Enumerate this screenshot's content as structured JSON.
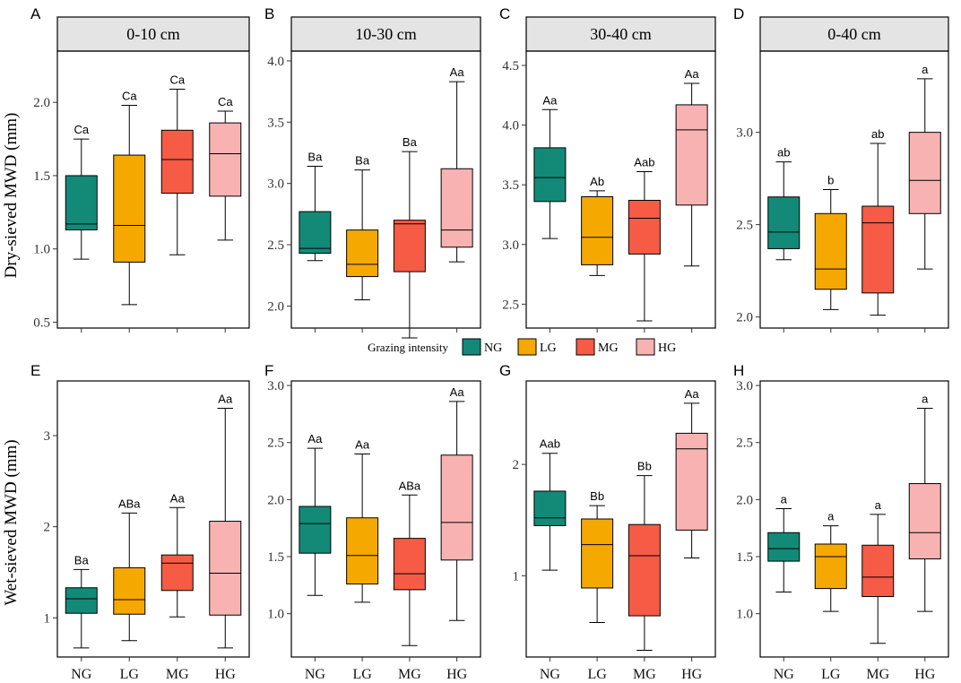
{
  "legend": {
    "title": "Grazing intensity",
    "items": [
      {
        "label": "NG",
        "color": "#138a78"
      },
      {
        "label": "LG",
        "color": "#f5a800"
      },
      {
        "label": "MG",
        "color": "#f55b45"
      },
      {
        "label": "HG",
        "color": "#f8b2b2"
      }
    ]
  },
  "y_titles": {
    "top": "Dry-sieved MWD (mm)",
    "bottom": "Wet-sieved MWD (mm)"
  },
  "chart_data": [
    {
      "type": "box",
      "letter": "A",
      "strip": "0-10 cm",
      "row": 0,
      "categories": [
        "NG",
        "LG",
        "MG",
        "HG"
      ],
      "ylim": [
        0.46,
        2.35
      ],
      "yticks": [
        {
          "v": 0.5,
          "label": "0.5"
        },
        {
          "v": 1.0,
          "label": "1.0"
        },
        {
          "v": 1.5,
          "label": "1.5"
        },
        {
          "v": 2.0,
          "label": "2.0"
        }
      ],
      "boxes": [
        {
          "min": 0.93,
          "q1": 1.13,
          "median": 1.17,
          "q3": 1.5,
          "max": 1.75,
          "label": "Ca"
        },
        {
          "min": 0.62,
          "q1": 0.91,
          "median": 1.16,
          "q3": 1.64,
          "max": 1.98,
          "label": "Ca"
        },
        {
          "min": 0.96,
          "q1": 1.38,
          "median": 1.61,
          "q3": 1.81,
          "max": 2.09,
          "label": "Ca"
        },
        {
          "min": 1.06,
          "q1": 1.36,
          "median": 1.65,
          "q3": 1.86,
          "max": 1.94,
          "label": "Ca"
        }
      ]
    },
    {
      "type": "box",
      "letter": "B",
      "strip": "10-30 cm",
      "row": 0,
      "categories": [
        "NG",
        "LG",
        "MG",
        "HG"
      ],
      "ylim": [
        1.82,
        4.08
      ],
      "yticks": [
        {
          "v": 2.0,
          "label": "2.0"
        },
        {
          "v": 2.5,
          "label": "2.5"
        },
        {
          "v": 3.0,
          "label": "3.0"
        },
        {
          "v": 3.5,
          "label": "3.5"
        },
        {
          "v": 4.0,
          "label": "4.0"
        }
      ],
      "boxes": [
        {
          "min": 2.37,
          "q1": 2.43,
          "median": 2.47,
          "q3": 2.77,
          "max": 3.14,
          "label": "Ba"
        },
        {
          "min": 2.05,
          "q1": 2.24,
          "median": 2.34,
          "q3": 2.62,
          "max": 3.11,
          "label": "Ba"
        },
        {
          "min": 1.74,
          "q1": 2.28,
          "median": 2.67,
          "q3": 2.7,
          "max": 3.26,
          "label": "Ba"
        },
        {
          "min": 2.36,
          "q1": 2.48,
          "median": 2.62,
          "q3": 3.12,
          "max": 3.83,
          "label": "Aa"
        }
      ]
    },
    {
      "type": "box",
      "letter": "C",
      "strip": "30-40 cm",
      "row": 0,
      "categories": [
        "NG",
        "LG",
        "MG",
        "HG"
      ],
      "ylim": [
        2.3,
        4.62
      ],
      "yticks": [
        {
          "v": 2.5,
          "label": "2.5"
        },
        {
          "v": 3.0,
          "label": "3.0"
        },
        {
          "v": 3.5,
          "label": "3.5"
        },
        {
          "v": 4.0,
          "label": "4.0"
        },
        {
          "v": 4.5,
          "label": "4.5"
        }
      ],
      "boxes": [
        {
          "min": 3.05,
          "q1": 3.36,
          "median": 3.56,
          "q3": 3.81,
          "max": 4.13,
          "label": "Aa"
        },
        {
          "min": 2.74,
          "q1": 2.83,
          "median": 3.06,
          "q3": 3.4,
          "max": 3.45,
          "label": "Ab"
        },
        {
          "min": 2.36,
          "q1": 2.92,
          "median": 3.22,
          "q3": 3.37,
          "max": 3.61,
          "label": "Aab"
        },
        {
          "min": 2.82,
          "q1": 3.33,
          "median": 3.96,
          "q3": 4.17,
          "max": 4.35,
          "label": "Aa"
        }
      ]
    },
    {
      "type": "box",
      "letter": "D",
      "strip": "0-40 cm",
      "row": 0,
      "categories": [
        "NG",
        "LG",
        "MG",
        "HG"
      ],
      "ylim": [
        1.94,
        3.44
      ],
      "yticks": [
        {
          "v": 2.0,
          "label": "2.0"
        },
        {
          "v": 2.5,
          "label": "2.5"
        },
        {
          "v": 3.0,
          "label": "3.0"
        }
      ],
      "boxes": [
        {
          "min": 2.31,
          "q1": 2.37,
          "median": 2.46,
          "q3": 2.65,
          "max": 2.84,
          "label": "ab"
        },
        {
          "min": 2.04,
          "q1": 2.15,
          "median": 2.26,
          "q3": 2.56,
          "max": 2.69,
          "label": "b"
        },
        {
          "min": 2.01,
          "q1": 2.13,
          "median": 2.51,
          "q3": 2.6,
          "max": 2.94,
          "label": "ab"
        },
        {
          "min": 2.26,
          "q1": 2.56,
          "median": 2.74,
          "q3": 3.0,
          "max": 3.29,
          "label": "a"
        }
      ]
    },
    {
      "type": "box",
      "letter": "E",
      "strip": "",
      "row": 1,
      "categories": [
        "NG",
        "LG",
        "MG",
        "HG"
      ],
      "ylim": [
        0.57,
        3.6
      ],
      "yticks": [
        {
          "v": 1,
          "label": "1"
        },
        {
          "v": 2,
          "label": "2"
        },
        {
          "v": 3,
          "label": "3"
        }
      ],
      "boxes": [
        {
          "min": 0.67,
          "q1": 1.05,
          "median": 1.21,
          "q3": 1.33,
          "max": 1.53,
          "label": "Ba"
        },
        {
          "min": 0.75,
          "q1": 1.04,
          "median": 1.2,
          "q3": 1.55,
          "max": 2.15,
          "label": "ABa"
        },
        {
          "min": 1.01,
          "q1": 1.3,
          "median": 1.6,
          "q3": 1.69,
          "max": 2.21,
          "label": "Aa"
        },
        {
          "min": 0.67,
          "q1": 1.03,
          "median": 1.49,
          "q3": 2.06,
          "max": 3.3,
          "label": "Aa"
        }
      ]
    },
    {
      "type": "box",
      "letter": "F",
      "strip": "",
      "row": 1,
      "categories": [
        "NG",
        "LG",
        "MG",
        "HG"
      ],
      "ylim": [
        0.62,
        3.04
      ],
      "yticks": [
        {
          "v": 1.0,
          "label": "1.0"
        },
        {
          "v": 1.5,
          "label": "1.5"
        },
        {
          "v": 2.0,
          "label": "2.0"
        },
        {
          "v": 2.5,
          "label": "2.5"
        },
        {
          "v": 3.0,
          "label": "3.0"
        }
      ],
      "boxes": [
        {
          "min": 1.16,
          "q1": 1.53,
          "median": 1.79,
          "q3": 1.94,
          "max": 2.45,
          "label": "Aa"
        },
        {
          "min": 1.1,
          "q1": 1.26,
          "median": 1.51,
          "q3": 1.84,
          "max": 2.4,
          "label": "Aa"
        },
        {
          "min": 0.72,
          "q1": 1.21,
          "median": 1.35,
          "q3": 1.66,
          "max": 2.04,
          "label": "ABa"
        },
        {
          "min": 0.94,
          "q1": 1.47,
          "median": 1.8,
          "q3": 2.39,
          "max": 2.86,
          "label": "Aa"
        }
      ]
    },
    {
      "type": "box",
      "letter": "G",
      "strip": "",
      "row": 1,
      "categories": [
        "NG",
        "LG",
        "MG",
        "HG"
      ],
      "ylim": [
        0.27,
        2.75
      ],
      "yticks": [
        {
          "v": 1,
          "label": "1"
        },
        {
          "v": 2,
          "label": "2"
        }
      ],
      "boxes": [
        {
          "min": 1.05,
          "q1": 1.45,
          "median": 1.52,
          "q3": 1.76,
          "max": 2.1,
          "label": "Aab"
        },
        {
          "min": 0.58,
          "q1": 0.89,
          "median": 1.28,
          "q3": 1.51,
          "max": 1.63,
          "label": "Bb"
        },
        {
          "min": 0.33,
          "q1": 0.64,
          "median": 1.18,
          "q3": 1.46,
          "max": 1.9,
          "label": "Bb"
        },
        {
          "min": 1.16,
          "q1": 1.41,
          "median": 2.14,
          "q3": 2.28,
          "max": 2.55,
          "label": "Aa"
        }
      ]
    },
    {
      "type": "box",
      "letter": "H",
      "strip": "",
      "row": 1,
      "categories": [
        "NG",
        "LG",
        "MG",
        "HG"
      ],
      "ylim": [
        0.62,
        3.04
      ],
      "yticks": [
        {
          "v": 1.0,
          "label": "1.0"
        },
        {
          "v": 1.5,
          "label": "1.5"
        },
        {
          "v": 2.0,
          "label": "2.0"
        },
        {
          "v": 2.5,
          "label": "2.5"
        },
        {
          "v": 3.0,
          "label": "3.0"
        }
      ],
      "boxes": [
        {
          "min": 1.19,
          "q1": 1.46,
          "median": 1.57,
          "q3": 1.71,
          "max": 1.92,
          "label": "a"
        },
        {
          "min": 1.02,
          "q1": 1.22,
          "median": 1.5,
          "q3": 1.61,
          "max": 1.77,
          "label": "a"
        },
        {
          "min": 0.74,
          "q1": 1.15,
          "median": 1.32,
          "q3": 1.6,
          "max": 1.87,
          "label": "a"
        },
        {
          "min": 1.02,
          "q1": 1.48,
          "median": 1.71,
          "q3": 2.14,
          "max": 2.8,
          "label": "a"
        }
      ]
    }
  ]
}
